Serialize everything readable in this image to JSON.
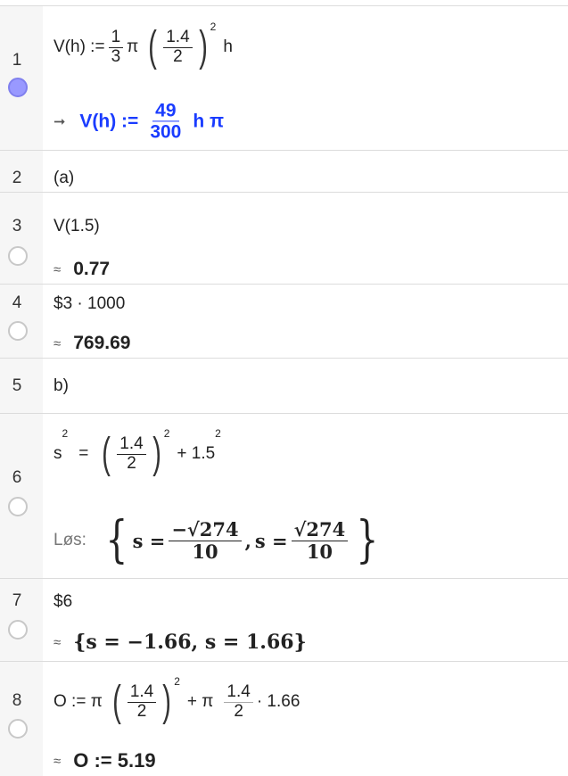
{
  "rows": [
    {
      "num": "1",
      "selected": true,
      "input": {
        "lhs": "V(h) :=",
        "f1n": "1",
        "f1d": "3",
        "pi": "π",
        "f2n": "1.4",
        "f2d": "2",
        "exp": "2",
        "var": "h"
      },
      "output": {
        "arrow": "➞",
        "lhs": "V(h) :=",
        "fn": "49",
        "fd": "300",
        "rest": "h π"
      }
    },
    {
      "num": "2",
      "input": "(a)"
    },
    {
      "num": "3",
      "input": "V(1.5)",
      "approx": "≈",
      "output": "0.77"
    },
    {
      "num": "4",
      "input": "$3 · 1000",
      "approx": "≈",
      "output": "769.69"
    },
    {
      "num": "5",
      "input": "b)"
    },
    {
      "num": "6",
      "input": {
        "s": "s",
        "sexp": "2",
        "eq": "=",
        "fn": "1.4",
        "fd": "2",
        "exp": "2",
        "plus": "+ 1.5",
        "pexp": "2"
      },
      "output": {
        "label": "Løs:",
        "s1": "s =",
        "n1": "−√274",
        "d1": "10",
        "comma": ",",
        "s2": "s =",
        "n2": "√274",
        "d2": "10"
      }
    },
    {
      "num": "7",
      "input": "$6",
      "approx": "≈",
      "output": "{s = −1.66, s = 1.66}"
    },
    {
      "num": "8",
      "input": {
        "lhs": "O := π",
        "fn": "1.4",
        "fd": "2",
        "exp": "2",
        "plus": "+ π",
        "f2n": "1.4",
        "f2d": "2",
        "tail": "· 1.66"
      },
      "approx": "≈",
      "output": "O := 5.19"
    }
  ],
  "colors": {
    "accent": "#1a3cff",
    "selected_marker": "#9999ff"
  }
}
